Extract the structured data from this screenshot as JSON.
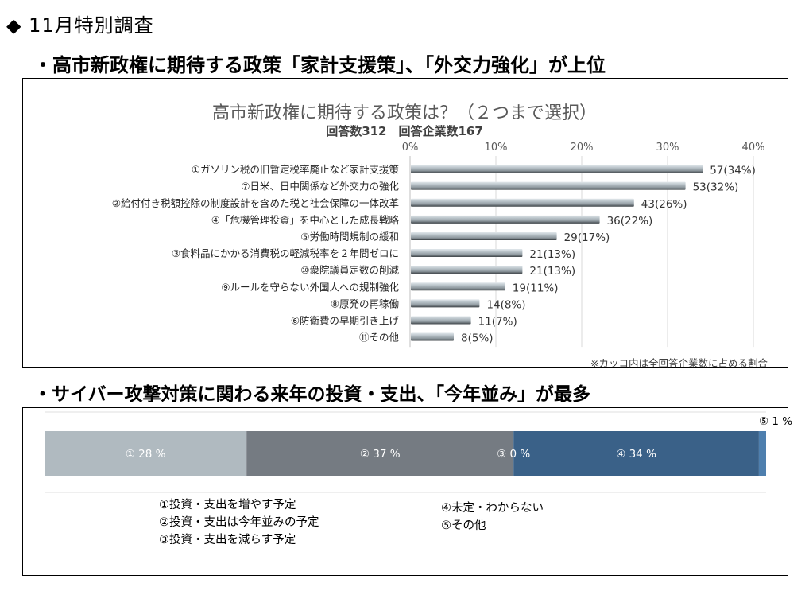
{
  "page": {
    "heading": "◆ 11月特別調査",
    "subheading1": "・高市新政権に期待する政策「家計支援策」、「外交力強化」が上位",
    "subheading2": "・サイバー攻撃対策に関わる来年の投資・支出、「今年並み」が最多"
  },
  "chart_data": [
    {
      "type": "bar",
      "orientation": "horizontal",
      "title": "高市新政権に期待する政策は？（２つまで選択）",
      "subtitle": "回答数312　回答企業数167",
      "xlabel": "",
      "ylabel": "",
      "xlim": [
        0,
        40
      ],
      "x_ticks": [
        "0%",
        "10%",
        "20%",
        "30%",
        "40%"
      ],
      "grid": true,
      "categories": [
        "①ガソリン税の旧暫定税率廃止など家計支援策",
        "⑦日米、日中関係など外交力の強化",
        "②給付付き税額控除の制度設計を含めた税と社会保障の一体改革",
        "④「危機管理投資」を中心とした成長戦略",
        "⑤労働時間規制の緩和",
        "③食料品にかかる消費税の軽減税率を２年間ゼロに",
        "⑩衆院議員定数の削減",
        "⑨ルールを守らない外国人への規制強化",
        "⑧原発の再稼働",
        "⑥防衛費の早期引き上げ",
        "⑪その他"
      ],
      "counts": [
        57,
        53,
        43,
        36,
        29,
        21,
        21,
        19,
        14,
        11,
        8
      ],
      "values": [
        34,
        32,
        26,
        22,
        17,
        13,
        13,
        11,
        8,
        7,
        5
      ],
      "data_labels": [
        "57(34%)",
        "53(32%)",
        "43(26%)",
        "36(22%)",
        "29(17%)",
        "21(13%)",
        "21(13%)",
        "19(11%)",
        "14(8%)",
        "11(7%)",
        "8(5%)"
      ],
      "note": "※カッコ内は全回答企業数に占める割合",
      "bar_color": "#a9b3b9"
    },
    {
      "type": "bar",
      "orientation": "stacked-100",
      "title": "",
      "categories": [
        "①",
        "②",
        "③",
        "④",
        "⑤"
      ],
      "values": [
        28,
        37,
        0,
        34,
        1
      ],
      "data_labels": [
        "① 28 %",
        "② 37 %",
        "③ 0 %",
        "④ 34 %",
        "⑤ 1 %"
      ],
      "colors": [
        "#b0bac0",
        "#757b82",
        "#8a8a8a",
        "#3a6188",
        "#4e7fae"
      ],
      "legend": [
        "①投資・支出を増やす予定",
        "②投資・支出は今年並みの予定",
        "③投資・支出を減らす予定",
        "④未定・わからない",
        "⑤その他"
      ]
    }
  ]
}
